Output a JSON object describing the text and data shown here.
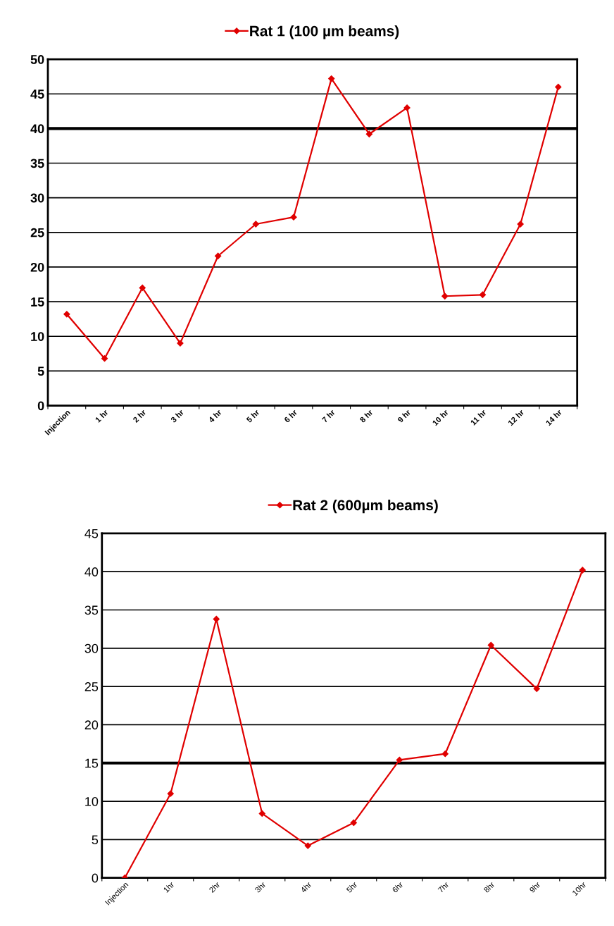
{
  "chart_data": [
    {
      "type": "line",
      "categories": [
        "Injection",
        "1 hr",
        "2 hr",
        "3 hr",
        "4 hr",
        "5 hr",
        "6 hr",
        "7 hr",
        "8 hr",
        "9 hr",
        "10 hr",
        "11 hr",
        "12 hr",
        "14 hr"
      ],
      "series": [
        {
          "name": "Rat 1 (100 µm beams)",
          "color": "#e00000",
          "values": [
            13.2,
            6.8,
            17,
            9,
            21.6,
            26.2,
            27.2,
            47.2,
            39.2,
            43,
            15.8,
            16,
            26.2,
            46
          ]
        }
      ],
      "ylim": [
        0,
        50
      ],
      "yticks": [
        0,
        5,
        10,
        15,
        20,
        25,
        30,
        35,
        40,
        45,
        50
      ],
      "grid": "y",
      "legend": "top",
      "marker": "diamond",
      "line_style": "solid",
      "ref_lines": [
        {
          "axis": "y",
          "value": 40
        }
      ]
    },
    {
      "type": "line",
      "categories": [
        "Injection",
        "1hr",
        "2hr",
        "3hr",
        "4hr",
        "5hr",
        "6hr",
        "7hr",
        "8hr",
        "9hr",
        "10hr"
      ],
      "series": [
        {
          "name": "Rat 2 (600µm beams)",
          "color": "#e00000",
          "values": [
            0,
            11,
            33.8,
            8.4,
            4.2,
            7.2,
            15.4,
            16.2,
            30.4,
            24.7,
            40.2
          ]
        }
      ],
      "ylim": [
        0,
        45
      ],
      "yticks": [
        0,
        5,
        10,
        15,
        20,
        25,
        30,
        35,
        40,
        45
      ],
      "grid": "y",
      "legend": "top",
      "marker": "diamond",
      "line_style": "solid",
      "ref_lines": [
        {
          "axis": "y",
          "value": 15
        }
      ]
    }
  ]
}
